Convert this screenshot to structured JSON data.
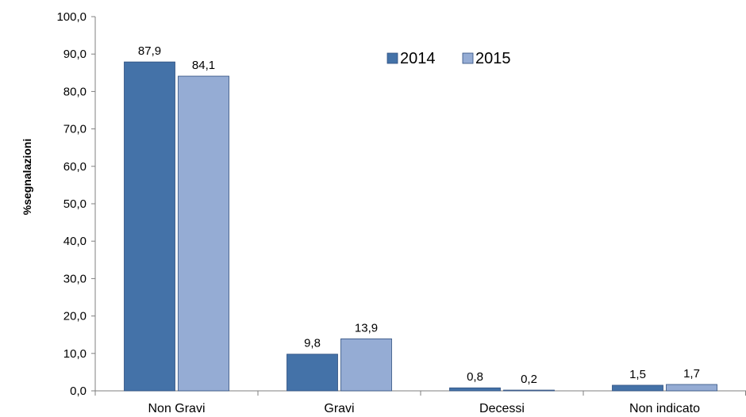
{
  "chart_data": {
    "type": "bar",
    "title": "",
    "xlabel": "",
    "ylabel": "%segnalazioni",
    "ylim": [
      0,
      100
    ],
    "y_ticks": [
      "0,0",
      "10,0",
      "20,0",
      "30,0",
      "40,0",
      "50,0",
      "60,0",
      "70,0",
      "80,0",
      "90,0",
      "100,0"
    ],
    "categories": [
      "Non Gravi",
      "Gravi",
      "Decessi",
      "Non indicato"
    ],
    "series": [
      {
        "name": "2014",
        "color": "#4472a8",
        "values": [
          87.9,
          9.8,
          0.8,
          1.5
        ],
        "labels": [
          "87,9",
          "9,8",
          "0,8",
          "1,5"
        ]
      },
      {
        "name": "2015",
        "color": "#95acd4",
        "values": [
          84.1,
          13.9,
          0.2,
          1.7
        ],
        "labels": [
          "84,1",
          "13,9",
          "0,2",
          "1,7"
        ]
      }
    ],
    "legend_position": "top-right",
    "grid": false
  }
}
